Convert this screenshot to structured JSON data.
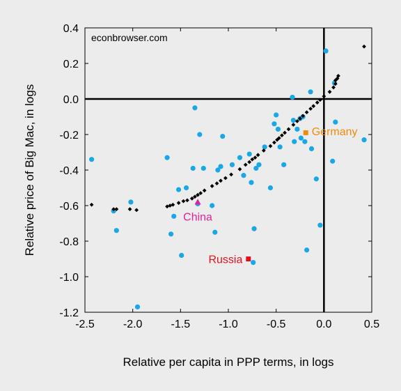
{
  "chart_data": {
    "type": "scatter",
    "watermark": "econbrowser.com",
    "xlabel": "Relative per capita in PPP terms, in logs",
    "ylabel": "Relative price of Big Mac, in logs",
    "xlim": [
      -2.5,
      0.5
    ],
    "ylim": [
      -1.2,
      0.4
    ],
    "xticks": [
      -2.5,
      -2.0,
      -1.5,
      -1.0,
      -0.5,
      0.0,
      0.5
    ],
    "xtick_labels": [
      "-2.5",
      "-2.0",
      "-1.5",
      "-1.0",
      "-0.5",
      "0.0",
      "0.5"
    ],
    "yticks": [
      -1.2,
      -1.0,
      -0.8,
      -0.6,
      -0.4,
      -0.2,
      0.0,
      0.2,
      0.4
    ],
    "ytick_labels": [
      "-1.2",
      "-1.0",
      "-0.8",
      "-0.6",
      "-0.4",
      "-0.2",
      "0.0",
      "0.2",
      "0.4"
    ],
    "zero_lines": true,
    "grid": false,
    "colors": {
      "countries": "#1aa7e8",
      "fitted": "#000000",
      "china": "#e0219a",
      "russia": "#e0101a",
      "germany": "#f28a10",
      "background": "#ececec"
    },
    "series": [
      {
        "marker": "circle",
        "color": "#1aa7e8",
        "points": [
          [
            -2.43,
            -0.34
          ],
          [
            -2.2,
            -0.63
          ],
          [
            -2.17,
            -0.74
          ],
          [
            -2.02,
            -0.58
          ],
          [
            -1.95,
            -1.17
          ],
          [
            -1.64,
            -0.33
          ],
          [
            -1.6,
            -0.76
          ],
          [
            -1.57,
            -0.66
          ],
          [
            -1.52,
            -0.51
          ],
          [
            -1.49,
            -0.88
          ],
          [
            -1.44,
            -0.5
          ],
          [
            -1.37,
            -0.39
          ],
          [
            -1.35,
            -0.05
          ],
          [
            -1.32,
            -0.59
          ],
          [
            -1.3,
            -0.2
          ],
          [
            -1.26,
            -0.39
          ],
          [
            -1.17,
            -0.6
          ],
          [
            -1.14,
            -0.75
          ],
          [
            -1.11,
            -0.4
          ],
          [
            -1.08,
            -0.38
          ],
          [
            -1.06,
            -0.21
          ],
          [
            -0.96,
            -0.37
          ],
          [
            -0.88,
            -0.33
          ],
          [
            -0.84,
            -0.43
          ],
          [
            -0.78,
            -0.31
          ],
          [
            -0.76,
            -0.47
          ],
          [
            -0.74,
            -0.92
          ],
          [
            -0.73,
            -0.73
          ],
          [
            -0.71,
            -0.39
          ],
          [
            -0.68,
            -0.37
          ],
          [
            -0.62,
            -0.27
          ],
          [
            -0.56,
            -0.5
          ],
          [
            -0.52,
            -0.14
          ],
          [
            -0.5,
            -0.09
          ],
          [
            -0.48,
            -0.17
          ],
          [
            -0.46,
            -0.27
          ],
          [
            -0.42,
            -0.37
          ],
          [
            -0.33,
            0.01
          ],
          [
            -0.32,
            -0.12
          ],
          [
            -0.31,
            -0.24
          ],
          [
            -0.28,
            -0.17
          ],
          [
            -0.25,
            -0.11
          ],
          [
            -0.24,
            -0.22
          ],
          [
            -0.22,
            -0.1
          ],
          [
            -0.2,
            -0.24
          ],
          [
            -0.18,
            -0.85
          ],
          [
            -0.14,
            0.04
          ],
          [
            -0.13,
            -0.28
          ],
          [
            -0.08,
            -0.45
          ],
          [
            -0.04,
            -0.71
          ],
          [
            0.02,
            0.27
          ],
          [
            0.09,
            -0.35
          ],
          [
            0.11,
            0.09
          ],
          [
            0.12,
            -0.13
          ],
          [
            0.42,
            -0.23
          ]
        ]
      },
      {
        "marker": "diamond",
        "color": "#000000",
        "points": [
          [
            -2.43,
            -0.595
          ],
          [
            -2.2,
            -0.62
          ],
          [
            -2.17,
            -0.62
          ],
          [
            -2.03,
            -0.62
          ],
          [
            -1.96,
            -0.625
          ],
          [
            -1.64,
            -0.605
          ],
          [
            -1.61,
            -0.6
          ],
          [
            -1.58,
            -0.595
          ],
          [
            -1.52,
            -0.585
          ],
          [
            -1.47,
            -0.575
          ],
          [
            -1.43,
            -0.57
          ],
          [
            -1.38,
            -0.56
          ],
          [
            -1.35,
            -0.55
          ],
          [
            -1.32,
            -0.54
          ],
          [
            -1.29,
            -0.53
          ],
          [
            -1.25,
            -0.515
          ],
          [
            -1.17,
            -0.49
          ],
          [
            -1.12,
            -0.475
          ],
          [
            -1.08,
            -0.46
          ],
          [
            -1.03,
            -0.445
          ],
          [
            -0.97,
            -0.425
          ],
          [
            -0.88,
            -0.395
          ],
          [
            -0.82,
            -0.37
          ],
          [
            -0.78,
            -0.355
          ],
          [
            -0.75,
            -0.34
          ],
          [
            -0.72,
            -0.33
          ],
          [
            -0.69,
            -0.315
          ],
          [
            -0.63,
            -0.29
          ],
          [
            -0.56,
            -0.265
          ],
          [
            -0.52,
            -0.245
          ],
          [
            -0.49,
            -0.23
          ],
          [
            -0.47,
            -0.22
          ],
          [
            -0.44,
            -0.205
          ],
          [
            -0.41,
            -0.19
          ],
          [
            -0.37,
            -0.17
          ],
          [
            -0.32,
            -0.145
          ],
          [
            -0.28,
            -0.125
          ],
          [
            -0.25,
            -0.11
          ],
          [
            -0.22,
            -0.095
          ],
          [
            -0.18,
            -0.075
          ],
          [
            -0.14,
            -0.055
          ],
          [
            -0.11,
            -0.04
          ],
          [
            -0.07,
            -0.02
          ],
          [
            -0.04,
            -0.005
          ],
          [
            0.0,
            0.015
          ],
          [
            0.06,
            0.04
          ],
          [
            0.1,
            0.065
          ],
          [
            0.12,
            0.085
          ],
          [
            0.12,
            0.105
          ],
          [
            0.14,
            0.115
          ],
          [
            0.15,
            0.13
          ],
          [
            0.42,
            0.295
          ]
        ]
      }
    ],
    "highlights": [
      {
        "label": "China",
        "x": -1.32,
        "y": -0.58,
        "marker": "triangle",
        "color": "#e0219a",
        "label_x": -1.32,
        "label_y": -0.66,
        "anchor": "middle"
      },
      {
        "label": "Russia",
        "x": -0.79,
        "y": -0.9,
        "marker": "square",
        "color": "#e0101a",
        "label_x": -0.83,
        "label_y": -0.9,
        "anchor": "end"
      },
      {
        "label": "Germany",
        "x": -0.19,
        "y": -0.19,
        "marker": "square",
        "color": "#f28a10",
        "label_x": -0.15,
        "label_y": -0.18,
        "anchor": "start"
      }
    ]
  }
}
